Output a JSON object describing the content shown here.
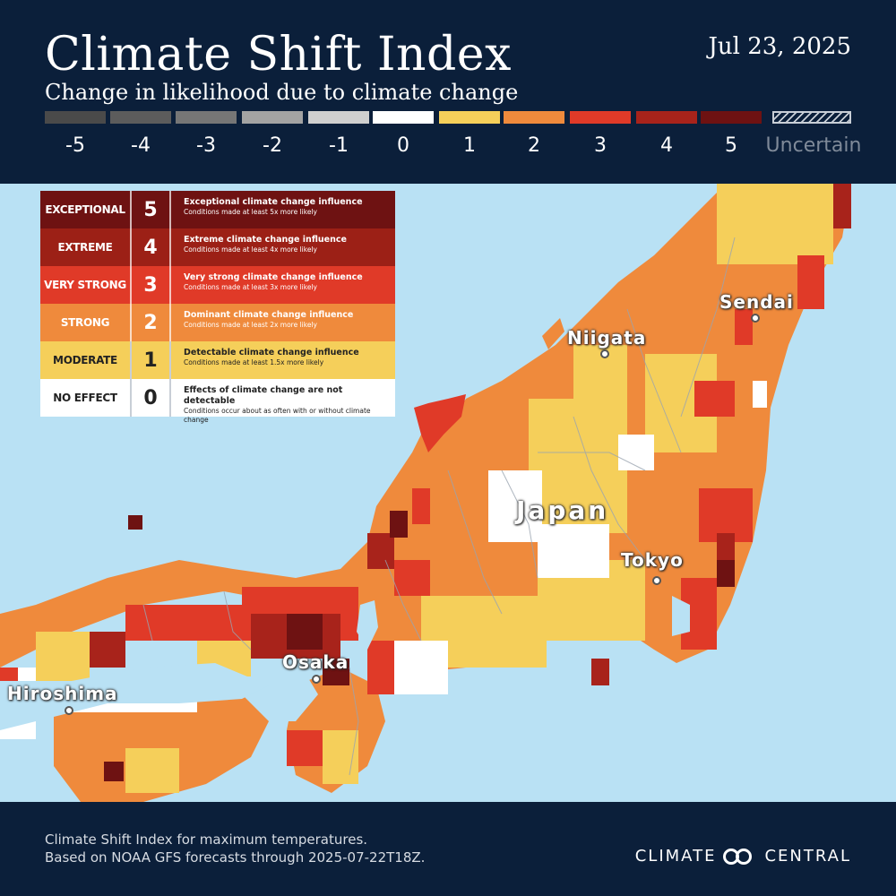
{
  "header": {
    "title": "Climate Shift Index",
    "subtitle": "Change in likelihood due to climate change",
    "date": "Jul 23, 2025"
  },
  "scale": [
    {
      "label": "-5",
      "color": "#4a4a4a"
    },
    {
      "label": "-4",
      "color": "#5c5c5c"
    },
    {
      "label": "-3",
      "color": "#767676"
    },
    {
      "label": "-2",
      "color": "#a3a3a3"
    },
    {
      "label": "-1",
      "color": "#cfcfcf"
    },
    {
      "label": "0",
      "color": "#ffffff"
    },
    {
      "label": "1",
      "color": "#f5cf5a"
    },
    {
      "label": "2",
      "color": "#ef8a3c"
    },
    {
      "label": "3",
      "color": "#e03a28"
    },
    {
      "label": "4",
      "color": "#a8231b"
    },
    {
      "label": "5",
      "color": "#6e1212"
    },
    {
      "label": "Uncertain",
      "color": "#c8ced6"
    }
  ],
  "legend": [
    {
      "category": "EXCEPTIONAL",
      "level": "5",
      "desc": "Exceptional climate change influence",
      "detail": "Conditions made at least 5x more likely",
      "color": "#6e1212"
    },
    {
      "category": "EXTREME",
      "level": "4",
      "desc": "Extreme climate change influence",
      "detail": "Conditions made at least 4x more likely",
      "color": "#9c2016"
    },
    {
      "category": "VERY STRONG",
      "level": "3",
      "desc": "Very strong climate change influence",
      "detail": "Conditions made at least 3x more likely",
      "color": "#e03a28"
    },
    {
      "category": "STRONG",
      "level": "2",
      "desc": "Dominant climate change influence",
      "detail": "Conditions made at least  2x more likely",
      "color": "#ef8a3c"
    },
    {
      "category": "MODERATE",
      "level": "1",
      "desc": "Detectable climate change influence",
      "detail": "Conditions made at least 1.5x more likely",
      "color": "#f5cf5a"
    },
    {
      "category": "NO EFFECT",
      "level": "0",
      "desc": "Effects of climate change are not detectable",
      "detail": "Conditions occur about as often with or without climate change",
      "color": "#ffffff"
    }
  ],
  "map": {
    "water_color": "#b9e1f4",
    "labels": {
      "sendai": "Sendai",
      "niigata": "Niigata",
      "japan": "Japan",
      "tokyo": "Tokyo",
      "osaka": "Osaka",
      "hiroshima": "Hiroshima"
    }
  },
  "footer": {
    "line1": "Climate Shift Index for maximum temperatures.",
    "line2": "Based on NOAA GFS forecasts through 2025-07-22T18Z.",
    "brand_left": "CLIMATE",
    "brand_right": "CENTRAL",
    "brand_icon": "two-circles-logo-icon"
  }
}
